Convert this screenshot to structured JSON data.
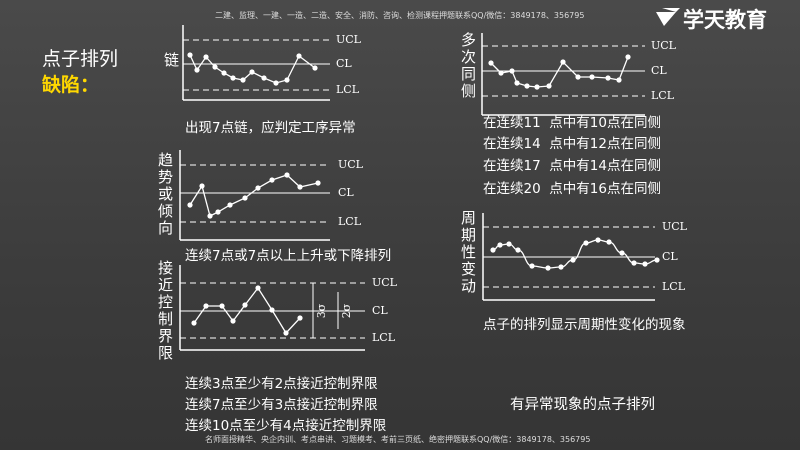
{
  "header": {
    "notice": "二建、监理、一建、一造、二造、安全、消防、咨询、检测课程押题联系QQ/微信：3849178、356795",
    "logo": "学天教育"
  },
  "title": "点子排列",
  "subtitle": "缺陷：",
  "panels": [
    {
      "label": "链",
      "ucl": "UCL",
      "cl": "CL",
      "lcl": "LCL",
      "caption": [
        "出现7点链，应判定工序异常"
      ]
    },
    {
      "label": "趋势或倾向",
      "ucl": "UCL",
      "cl": "CL",
      "lcl": "LCL",
      "caption": [
        "连续7点或7点以上上升或下降排列"
      ]
    },
    {
      "label": "接近控制界限",
      "ucl": "UCL",
      "cl": "CL",
      "lcl": "LCL",
      "caption": [
        "连续3点至少有2点接近控制界限",
        "连续7点至少有3点接近控制界限",
        "连续10点至少有4点接近控制界限"
      ]
    },
    {
      "label": "多次同侧",
      "ucl": "UCL",
      "cl": "CL",
      "lcl": "LCL",
      "caption": [
        "在连续11  点中有10点在同侧",
        "在连续14  点中有12点在同侧",
        "在连续17  点中有14点在同侧",
        "在连续20  点中有16点在同侧"
      ]
    },
    {
      "label": "周期性变动",
      "ucl": "UCL",
      "cl": "CL",
      "lcl": "LCL",
      "caption": [
        "点子的排列显示周期性变化的现象"
      ]
    }
  ],
  "sigma": [
    "3σ",
    "2σ"
  ],
  "summary": "有异常现象的点子排列",
  "footer": "名师面授精华、央企内训、考点串讲、习题模考、考前三页纸、绝密押题联系QQ/微信：3849178、356795"
}
